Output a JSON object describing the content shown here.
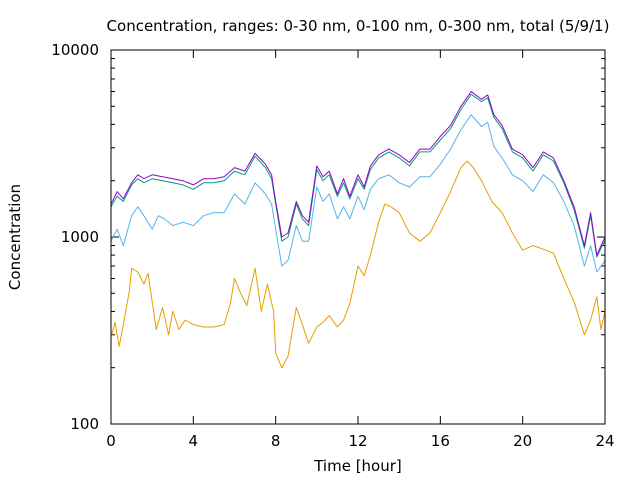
{
  "chart_data": {
    "type": "line",
    "title": "Concentration, ranges: 0-30 nm, 0-100 nm, 0-300 nm, total (5/9/1)",
    "xlabel": "Time [hour]",
    "ylabel": "Concentration",
    "xlim": [
      0,
      24
    ],
    "ylim": [
      100,
      10000
    ],
    "yscale": "log",
    "xticks": [
      0,
      4,
      8,
      12,
      16,
      20,
      24
    ],
    "xtick_labels": [
      "0",
      "4",
      "8",
      "12",
      "16",
      "20",
      "24"
    ],
    "yticks": [
      100,
      1000,
      10000
    ],
    "ytick_labels": [
      "100",
      "1000",
      "10000"
    ],
    "grid": false,
    "colors": {
      "total": "#9400d3",
      "range_0_300": "#009e73",
      "range_0_100": "#56b4e9",
      "range_0_30": "#e69f00"
    },
    "series": [
      {
        "key": "total",
        "points": [
          [
            0,
            1500
          ],
          [
            0.3,
            1750
          ],
          [
            0.6,
            1600
          ],
          [
            1,
            1950
          ],
          [
            1.3,
            2150
          ],
          [
            1.6,
            2050
          ],
          [
            2,
            2150
          ],
          [
            2.5,
            2100
          ],
          [
            3,
            2050
          ],
          [
            3.5,
            2000
          ],
          [
            4,
            1900
          ],
          [
            4.5,
            2050
          ],
          [
            5,
            2050
          ],
          [
            5.5,
            2100
          ],
          [
            6,
            2350
          ],
          [
            6.5,
            2250
          ],
          [
            7,
            2800
          ],
          [
            7.5,
            2450
          ],
          [
            7.8,
            2150
          ],
          [
            8,
            1550
          ],
          [
            8.3,
            1000
          ],
          [
            8.6,
            1050
          ],
          [
            9,
            1550
          ],
          [
            9.3,
            1300
          ],
          [
            9.6,
            1200
          ],
          [
            10,
            2400
          ],
          [
            10.3,
            2100
          ],
          [
            10.6,
            2250
          ],
          [
            11,
            1700
          ],
          [
            11.3,
            2050
          ],
          [
            11.6,
            1650
          ],
          [
            12,
            2150
          ],
          [
            12.3,
            1850
          ],
          [
            12.6,
            2400
          ],
          [
            13,
            2750
          ],
          [
            13.5,
            2950
          ],
          [
            14,
            2750
          ],
          [
            14.5,
            2500
          ],
          [
            15,
            2950
          ],
          [
            15.5,
            2950
          ],
          [
            16,
            3450
          ],
          [
            16.5,
            3950
          ],
          [
            17,
            5000
          ],
          [
            17.5,
            6000
          ],
          [
            18,
            5450
          ],
          [
            18.3,
            5750
          ],
          [
            18.6,
            4500
          ],
          [
            19,
            3950
          ],
          [
            19.5,
            2950
          ],
          [
            20,
            2750
          ],
          [
            20.5,
            2350
          ],
          [
            21,
            2850
          ],
          [
            21.5,
            2650
          ],
          [
            22,
            2000
          ],
          [
            22.5,
            1450
          ],
          [
            23,
            900
          ],
          [
            23.3,
            1350
          ],
          [
            23.6,
            800
          ],
          [
            24,
            1000
          ]
        ]
      },
      {
        "key": "range_0_300",
        "points": [
          [
            0,
            1450
          ],
          [
            0.3,
            1650
          ],
          [
            0.6,
            1550
          ],
          [
            1,
            1900
          ],
          [
            1.3,
            2050
          ],
          [
            1.6,
            1950
          ],
          [
            2,
            2050
          ],
          [
            2.5,
            2000
          ],
          [
            3,
            1950
          ],
          [
            3.5,
            1900
          ],
          [
            4,
            1800
          ],
          [
            4.5,
            1950
          ],
          [
            5,
            1950
          ],
          [
            5.5,
            2000
          ],
          [
            6,
            2250
          ],
          [
            6.5,
            2150
          ],
          [
            7,
            2700
          ],
          [
            7.5,
            2350
          ],
          [
            7.8,
            2050
          ],
          [
            8,
            1500
          ],
          [
            8.3,
            950
          ],
          [
            8.6,
            1000
          ],
          [
            9,
            1500
          ],
          [
            9.3,
            1250
          ],
          [
            9.6,
            1150
          ],
          [
            10,
            2300
          ],
          [
            10.3,
            2000
          ],
          [
            10.6,
            2150
          ],
          [
            11,
            1650
          ],
          [
            11.3,
            1950
          ],
          [
            11.6,
            1600
          ],
          [
            12,
            2050
          ],
          [
            12.3,
            1800
          ],
          [
            12.6,
            2300
          ],
          [
            13,
            2650
          ],
          [
            13.5,
            2850
          ],
          [
            14,
            2650
          ],
          [
            14.5,
            2400
          ],
          [
            15,
            2850
          ],
          [
            15.5,
            2850
          ],
          [
            16,
            3300
          ],
          [
            16.5,
            3800
          ],
          [
            17,
            4800
          ],
          [
            17.5,
            5800
          ],
          [
            18,
            5300
          ],
          [
            18.3,
            5550
          ],
          [
            18.6,
            4350
          ],
          [
            19,
            3800
          ],
          [
            19.5,
            2850
          ],
          [
            20,
            2650
          ],
          [
            20.5,
            2250
          ],
          [
            21,
            2750
          ],
          [
            21.5,
            2550
          ],
          [
            22,
            1950
          ],
          [
            22.5,
            1400
          ],
          [
            23,
            870
          ],
          [
            23.3,
            1300
          ],
          [
            23.6,
            780
          ],
          [
            24,
            960
          ]
        ]
      },
      {
        "key": "range_0_100",
        "points": [
          [
            0,
            950
          ],
          [
            0.3,
            1100
          ],
          [
            0.6,
            900
          ],
          [
            1,
            1300
          ],
          [
            1.3,
            1450
          ],
          [
            1.6,
            1300
          ],
          [
            2,
            1100
          ],
          [
            2.3,
            1300
          ],
          [
            2.6,
            1250
          ],
          [
            3,
            1150
          ],
          [
            3.5,
            1200
          ],
          [
            4,
            1150
          ],
          [
            4.5,
            1300
          ],
          [
            5,
            1350
          ],
          [
            5.5,
            1350
          ],
          [
            6,
            1700
          ],
          [
            6.5,
            1500
          ],
          [
            7,
            1950
          ],
          [
            7.5,
            1700
          ],
          [
            7.8,
            1500
          ],
          [
            8,
            1100
          ],
          [
            8.3,
            700
          ],
          [
            8.6,
            750
          ],
          [
            9,
            1150
          ],
          [
            9.3,
            950
          ],
          [
            9.6,
            950
          ],
          [
            10,
            1850
          ],
          [
            10.3,
            1550
          ],
          [
            10.6,
            1700
          ],
          [
            11,
            1250
          ],
          [
            11.3,
            1450
          ],
          [
            11.6,
            1250
          ],
          [
            12,
            1650
          ],
          [
            12.3,
            1400
          ],
          [
            12.6,
            1800
          ],
          [
            13,
            2050
          ],
          [
            13.5,
            2150
          ],
          [
            14,
            1950
          ],
          [
            14.5,
            1850
          ],
          [
            15,
            2100
          ],
          [
            15.5,
            2100
          ],
          [
            16,
            2450
          ],
          [
            16.5,
            2950
          ],
          [
            17,
            3750
          ],
          [
            17.5,
            4500
          ],
          [
            18,
            3900
          ],
          [
            18.3,
            4100
          ],
          [
            18.6,
            3050
          ],
          [
            19,
            2650
          ],
          [
            19.5,
            2150
          ],
          [
            20,
            2000
          ],
          [
            20.5,
            1750
          ],
          [
            21,
            2150
          ],
          [
            21.5,
            1950
          ],
          [
            22,
            1550
          ],
          [
            22.5,
            1150
          ],
          [
            23,
            700
          ],
          [
            23.3,
            900
          ],
          [
            23.6,
            650
          ],
          [
            24,
            750
          ]
        ]
      },
      {
        "key": "range_0_30",
        "points": [
          [
            0,
            290
          ],
          [
            0.2,
            350
          ],
          [
            0.4,
            260
          ],
          [
            0.6,
            340
          ],
          [
            0.9,
            520
          ],
          [
            1,
            680
          ],
          [
            1.3,
            650
          ],
          [
            1.6,
            560
          ],
          [
            1.8,
            640
          ],
          [
            2,
            450
          ],
          [
            2.2,
            320
          ],
          [
            2.5,
            420
          ],
          [
            2.8,
            300
          ],
          [
            3,
            400
          ],
          [
            3.3,
            320
          ],
          [
            3.6,
            360
          ],
          [
            4,
            340
          ],
          [
            4.5,
            330
          ],
          [
            5,
            330
          ],
          [
            5.5,
            340
          ],
          [
            5.8,
            440
          ],
          [
            6,
            600
          ],
          [
            6.3,
            500
          ],
          [
            6.6,
            430
          ],
          [
            7,
            680
          ],
          [
            7.3,
            400
          ],
          [
            7.6,
            560
          ],
          [
            7.9,
            400
          ],
          [
            8,
            240
          ],
          [
            8.3,
            200
          ],
          [
            8.6,
            230
          ],
          [
            9,
            420
          ],
          [
            9.3,
            340
          ],
          [
            9.6,
            270
          ],
          [
            10,
            330
          ],
          [
            10.3,
            350
          ],
          [
            10.6,
            380
          ],
          [
            11,
            330
          ],
          [
            11.3,
            360
          ],
          [
            11.6,
            440
          ],
          [
            12,
            700
          ],
          [
            12.3,
            620
          ],
          [
            12.6,
            800
          ],
          [
            13,
            1200
          ],
          [
            13.3,
            1500
          ],
          [
            13.6,
            1450
          ],
          [
            14,
            1350
          ],
          [
            14.5,
            1050
          ],
          [
            15,
            950
          ],
          [
            15.5,
            1050
          ],
          [
            16,
            1350
          ],
          [
            16.5,
            1750
          ],
          [
            17,
            2350
          ],
          [
            17.3,
            2550
          ],
          [
            17.6,
            2350
          ],
          [
            18,
            2000
          ],
          [
            18.5,
            1550
          ],
          [
            19,
            1350
          ],
          [
            19.5,
            1050
          ],
          [
            20,
            850
          ],
          [
            20.5,
            900
          ],
          [
            21,
            860
          ],
          [
            21.5,
            820
          ],
          [
            22,
            600
          ],
          [
            22.5,
            450
          ],
          [
            23,
            300
          ],
          [
            23.3,
            360
          ],
          [
            23.6,
            480
          ],
          [
            23.8,
            320
          ],
          [
            24,
            400
          ]
        ]
      }
    ]
  }
}
